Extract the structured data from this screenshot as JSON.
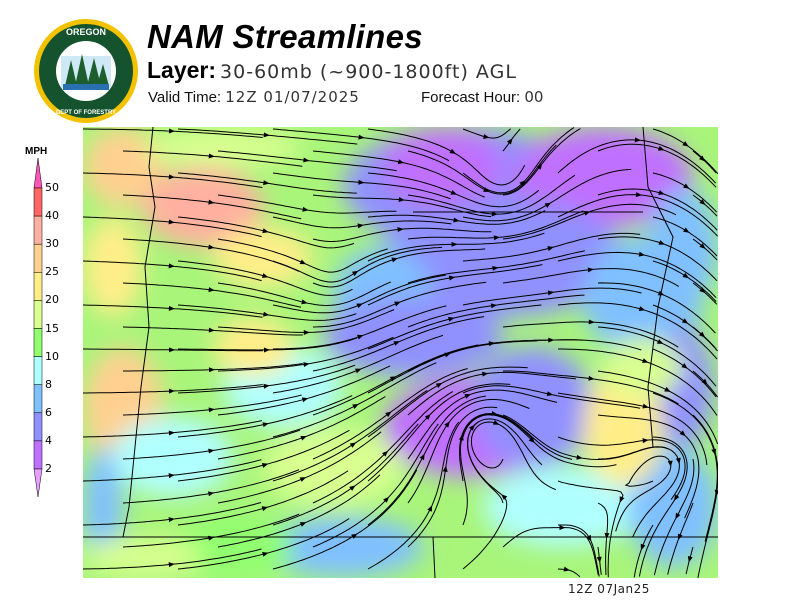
{
  "logo": {
    "text_top": "OREGON",
    "text_bottom": "DEPARTMENT OF FORESTRY"
  },
  "header": {
    "title": "NAM Streamlines",
    "layer_label": "Layer:",
    "layer_value": "30-60mb (~900-1800ft) AGL",
    "valid_label": "Valid Time:",
    "valid_value": "12Z 01/07/2025",
    "forecast_label": "Forecast Hour:",
    "forecast_value": "00"
  },
  "legend": {
    "unit": "MPH",
    "ticks": [
      "50",
      "40",
      "30",
      "25",
      "20",
      "15",
      "10",
      "8",
      "6",
      "4",
      "2"
    ],
    "colors": {
      "above_50": "#ff55bb",
      "40_50": "#ff6666",
      "30_40": "#ffb0a0",
      "25_30": "#ffd090",
      "20_25": "#ffee88",
      "15_20": "#d8ff90",
      "10_15": "#90ff70",
      "8_10": "#b0ffff",
      "6_8": "#80c0ff",
      "4_6": "#9090ff",
      "2_4": "#c070ff",
      "below_2": "#e8a0ff"
    }
  },
  "footer": {
    "timestamp": "12Z 07Jan25"
  }
}
